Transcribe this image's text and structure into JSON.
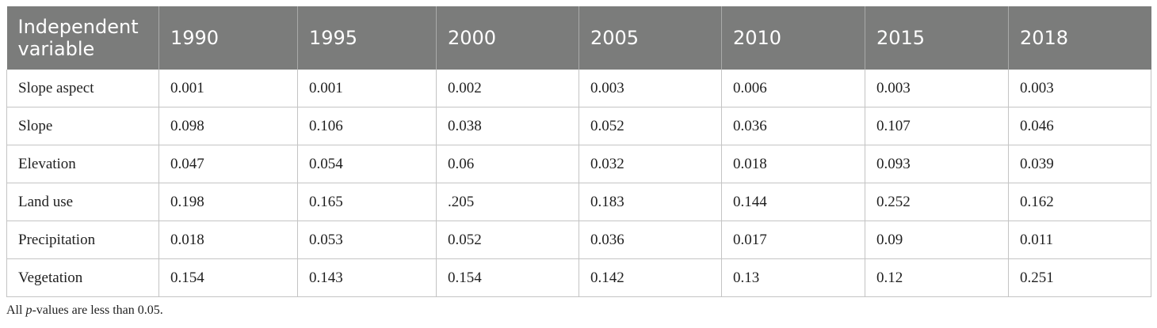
{
  "table": {
    "columns": [
      "Independent variable",
      "1990",
      "1995",
      "2000",
      "2005",
      "2010",
      "2015",
      "2018"
    ],
    "rows": [
      [
        "Slope aspect",
        "0.001",
        "0.001",
        "0.002",
        "0.003",
        "0.006",
        "0.003",
        "0.003"
      ],
      [
        "Slope",
        "0.098",
        "0.106",
        "0.038",
        "0.052",
        "0.036",
        "0.107",
        "0.046"
      ],
      [
        "Elevation",
        "0.047",
        "0.054",
        "0.06",
        "0.032",
        "0.018",
        "0.093",
        "0.039"
      ],
      [
        "Land use",
        "0.198",
        "0.165",
        ".205",
        "0.183",
        "0.144",
        "0.252",
        "0.162"
      ],
      [
        "Precipitation",
        "0.018",
        "0.053",
        "0.052",
        "0.036",
        "0.017",
        "0.09",
        "0.011"
      ],
      [
        "Vegetation",
        "0.154",
        "0.143",
        "0.154",
        "0.142",
        "0.13",
        "0.12",
        "0.251"
      ]
    ]
  },
  "footnote": {
    "prefix": "All ",
    "italic": "p",
    "suffix": "-values are less than 0.05."
  }
}
